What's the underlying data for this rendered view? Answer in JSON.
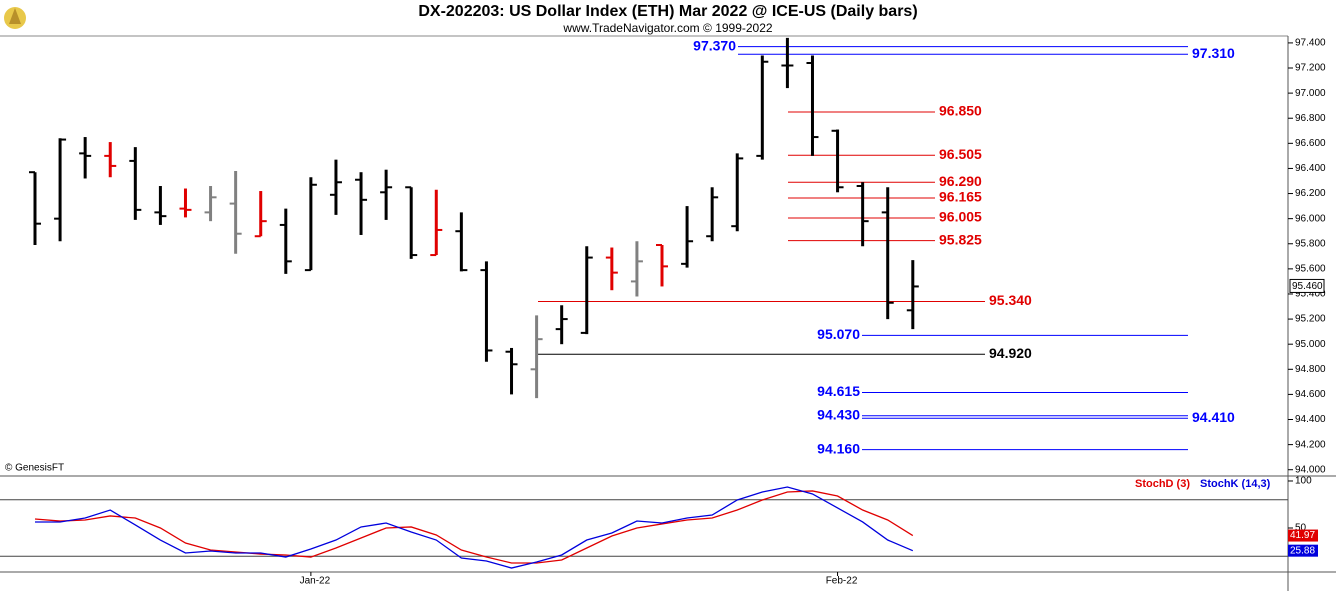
{
  "chart_data": [
    {
      "type": "ohlc",
      "title": "DX-202203:  US Dollar Index (ETH) Mar 2022 @ ICE-US  (Daily bars)",
      "subtitle": "www.TradeNavigator.com © 1999-2022",
      "credit": "© GenesisFT",
      "categories": [
        null,
        null,
        null,
        null,
        null,
        null,
        null,
        null,
        null,
        null,
        null,
        "Jan-22",
        null,
        null,
        null,
        null,
        null,
        null,
        null,
        null,
        null,
        null,
        null,
        null,
        null,
        null,
        null,
        null,
        null,
        null,
        null,
        null,
        "Feb-22",
        null,
        null,
        null
      ],
      "open": [
        96.37,
        96.0,
        96.52,
        96.5,
        96.46,
        96.05,
        96.08,
        96.05,
        96.12,
        95.86,
        95.95,
        95.59,
        96.19,
        96.31,
        96.21,
        96.25,
        95.71,
        95.9,
        95.59,
        94.94,
        94.8,
        95.12,
        95.09,
        95.69,
        95.5,
        95.79,
        95.64,
        95.86,
        95.94,
        96.5,
        97.22,
        97.24,
        96.7,
        96.26,
        96.05,
        95.27
      ],
      "high": [
        96.37,
        96.64,
        96.65,
        96.61,
        96.57,
        96.26,
        96.24,
        96.26,
        96.38,
        96.22,
        96.08,
        96.33,
        96.47,
        96.37,
        96.39,
        96.25,
        96.23,
        96.05,
        95.66,
        94.97,
        95.23,
        95.31,
        95.78,
        95.77,
        95.82,
        95.79,
        96.1,
        96.25,
        96.52,
        97.3,
        97.44,
        97.3,
        96.71,
        96.29,
        96.25,
        95.67
      ],
      "low": [
        95.79,
        95.82,
        96.32,
        96.33,
        95.99,
        95.95,
        96.01,
        95.98,
        95.72,
        95.86,
        95.56,
        95.59,
        96.03,
        95.87,
        95.99,
        95.68,
        95.71,
        95.58,
        94.86,
        94.6,
        94.57,
        95.0,
        95.08,
        95.43,
        95.38,
        95.46,
        95.61,
        95.82,
        95.9,
        96.47,
        97.04,
        96.5,
        96.21,
        95.78,
        95.2,
        95.12
      ],
      "close": [
        95.96,
        96.63,
        96.5,
        96.42,
        96.07,
        96.02,
        96.07,
        96.17,
        95.88,
        95.98,
        95.66,
        96.27,
        96.29,
        96.15,
        96.25,
        95.71,
        95.91,
        95.59,
        94.95,
        94.84,
        95.04,
        95.2,
        95.69,
        95.57,
        95.66,
        95.62,
        95.82,
        96.17,
        96.48,
        97.25,
        97.22,
        96.65,
        96.25,
        95.98,
        95.33,
        95.46
      ],
      "colors": [
        "#000000",
        "#000000",
        "#000000",
        "#e00000",
        "#000000",
        "#000000",
        "#e00000",
        "#808080",
        "#808080",
        "#e00000",
        "#000000",
        "#000000",
        "#000000",
        "#000000",
        "#000000",
        "#000000",
        "#e00000",
        "#000000",
        "#000000",
        "#000000",
        "#808080",
        "#000000",
        "#000000",
        "#e00000",
        "#808080",
        "#e00000",
        "#000000",
        "#000000",
        "#000000",
        "#000000",
        "#000000",
        "#000000",
        "#000000",
        "#000000",
        "#000000",
        "#000000"
      ],
      "last_close_label": "95.460",
      "ylim": [
        93.95,
        97.455
      ],
      "yticks": [
        {
          "value": 94.0,
          "label": "94.000"
        },
        {
          "value": 94.2,
          "label": "94.200"
        },
        {
          "value": 94.4,
          "label": "94.400"
        },
        {
          "value": 94.6,
          "label": "94.600"
        },
        {
          "value": 94.8,
          "label": "94.800"
        },
        {
          "value": 95.0,
          "label": "95.000"
        },
        {
          "value": 95.2,
          "label": "95.200"
        },
        {
          "value": 95.4,
          "label": "95.400"
        },
        {
          "value": 95.6,
          "label": "95.600"
        },
        {
          "value": 95.8,
          "label": "95.800"
        },
        {
          "value": 96.0,
          "label": "96.000"
        },
        {
          "value": 96.2,
          "label": "96.200"
        },
        {
          "value": 96.4,
          "label": "96.400"
        },
        {
          "value": 96.6,
          "label": "96.600"
        },
        {
          "value": 96.8,
          "label": "96.800"
        },
        {
          "value": 97.0,
          "label": "97.000"
        },
        {
          "value": 97.2,
          "label": "97.200"
        },
        {
          "value": 97.4,
          "label": "97.400"
        }
      ],
      "levels": [
        {
          "value": 97.37,
          "label": "97.370",
          "color": "#0000ff"
        },
        {
          "value": 97.31,
          "label": "97.310",
          "color": "#0000ff"
        },
        {
          "value": 96.85,
          "label": "96.850",
          "color": "#e00000"
        },
        {
          "value": 96.505,
          "label": "96.505",
          "color": "#e00000"
        },
        {
          "value": 96.29,
          "label": "96.290",
          "color": "#e00000"
        },
        {
          "value": 96.165,
          "label": "96.165",
          "color": "#e00000"
        },
        {
          "value": 96.005,
          "label": "96.005",
          "color": "#e00000"
        },
        {
          "value": 95.825,
          "label": "95.825",
          "color": "#e00000"
        },
        {
          "value": 95.34,
          "label": "95.340",
          "color": "#e00000"
        },
        {
          "value": 95.07,
          "label": "95.070",
          "color": "#0000ff"
        },
        {
          "value": 94.92,
          "label": "94.920",
          "color": "#000000"
        },
        {
          "value": 94.615,
          "label": "94.615",
          "color": "#0000ff"
        },
        {
          "value": 94.43,
          "label": "94.430",
          "color": "#0000ff"
        },
        {
          "value": 94.41,
          "label": "94.410",
          "color": "#0000ff"
        },
        {
          "value": 94.16,
          "label": "94.160",
          "color": "#0000ff"
        }
      ]
    },
    {
      "type": "line",
      "series": [
        {
          "name": "StochD (3)",
          "color": "#e00000",
          "values": [
            59.6,
            57.4,
            58.5,
            62.8,
            60.6,
            50,
            34,
            26.6,
            24.5,
            22.3,
            21.3,
            19.1,
            28.7,
            39.4,
            50,
            51.1,
            42.6,
            26.6,
            19.1,
            12.8,
            12.8,
            16,
            28.7,
            41.5,
            50,
            54.3,
            58.5,
            60.6,
            69.1,
            79.8,
            88.3,
            89.4,
            84,
            69.1,
            58.5,
            41.97
          ]
        },
        {
          "name": "StochK (14,3)",
          "color": "#0000dd",
          "values": [
            56.4,
            56.4,
            60.6,
            69.1,
            53.2,
            37.2,
            23.4,
            25.5,
            23.4,
            23.4,
            19.1,
            27.7,
            37.2,
            51.1,
            55.3,
            45.7,
            37.2,
            18.1,
            14.9,
            7.4,
            13.8,
            21.3,
            37.2,
            44.7,
            57.4,
            55.3,
            60.6,
            63.8,
            79.8,
            88.3,
            93.6,
            86.2,
            71.3,
            56.4,
            37.2,
            25.88
          ]
        }
      ],
      "ylim": [
        3.2,
        105.3
      ],
      "yticks": [
        100,
        50
      ],
      "grid_lines": [
        80,
        20
      ]
    }
  ]
}
